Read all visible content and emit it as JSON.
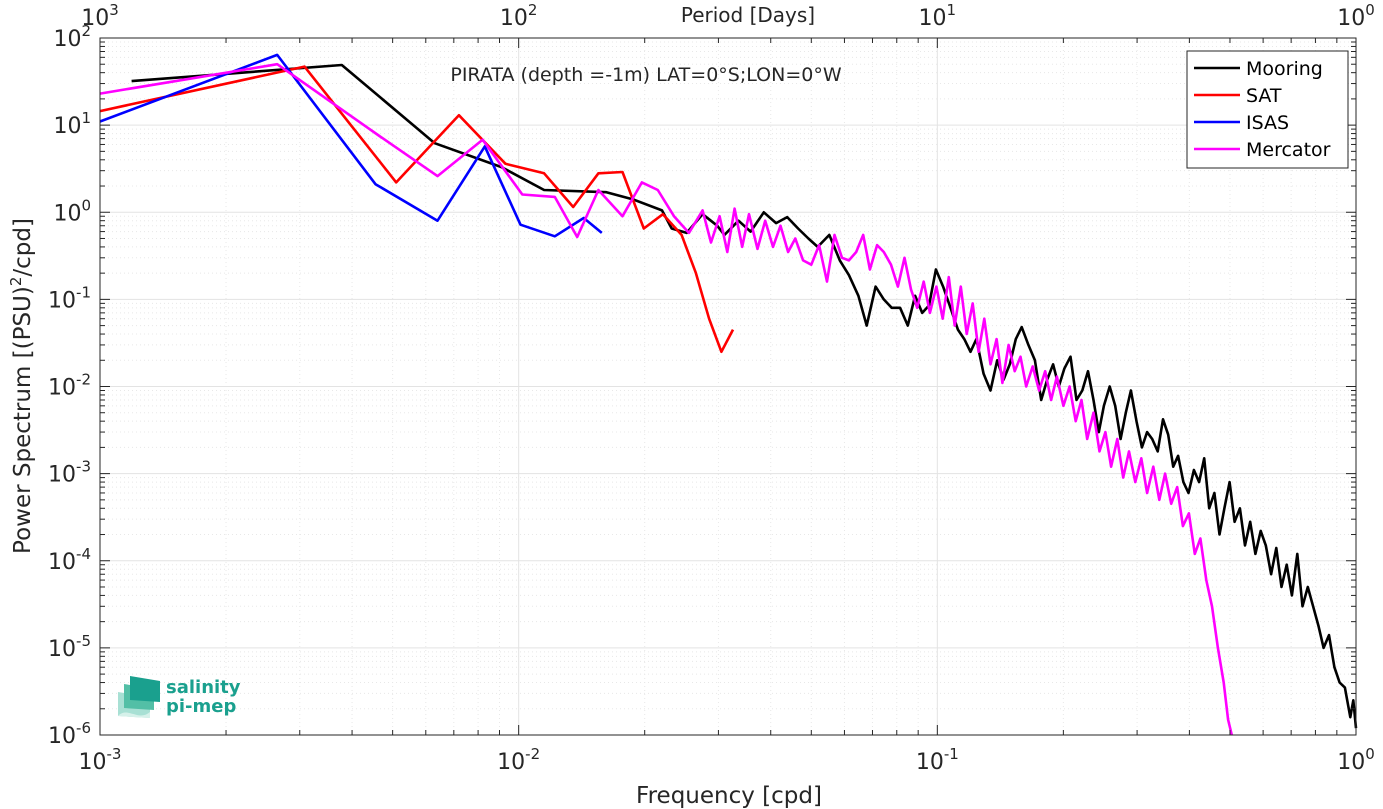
{
  "chart_data": {
    "type": "line",
    "title": "PIRATA (depth =-1m) LAT=0°S;LON=0°W",
    "xlabel": "Frequency [cpd]",
    "ylabel": "Power Spectrum [(PSU)",
    "ylabel_sup": "2",
    "ylabel_tail": "/cpd]",
    "x2label": "Period [Days]",
    "x_scale": "log",
    "y_scale": "log",
    "xlim": [
      0.001,
      1
    ],
    "ylim": [
      1e-06,
      100
    ],
    "grid": true,
    "legend_position": "top-right",
    "x_ticks": [
      {
        "value": 0.001,
        "base": "10",
        "exp": "-3"
      },
      {
        "value": 0.01,
        "base": "10",
        "exp": "-2"
      },
      {
        "value": 0.1,
        "base": "10",
        "exp": "-1"
      },
      {
        "value": 1,
        "base": "10",
        "exp": "0"
      }
    ],
    "x2_ticks": [
      {
        "value": 0.001,
        "base": "10",
        "exp": "3"
      },
      {
        "value": 0.01,
        "base": "10",
        "exp": "2"
      },
      {
        "value": 0.1,
        "base": "10",
        "exp": "1"
      },
      {
        "value": 1,
        "base": "10",
        "exp": "0"
      }
    ],
    "y_ticks": [
      {
        "value": 100,
        "base": "10",
        "exp": "2"
      },
      {
        "value": 10,
        "base": "10",
        "exp": "1"
      },
      {
        "value": 1,
        "base": "10",
        "exp": "0"
      },
      {
        "value": 0.1,
        "base": "10",
        "exp": "-1"
      },
      {
        "value": 0.01,
        "base": "10",
        "exp": "-2"
      },
      {
        "value": 0.001,
        "base": "10",
        "exp": "-3"
      },
      {
        "value": 0.0001,
        "base": "10",
        "exp": "-4"
      },
      {
        "value": 1e-05,
        "base": "10",
        "exp": "-5"
      },
      {
        "value": 1e-06,
        "base": "10",
        "exp": "-6"
      }
    ],
    "series": [
      {
        "name": "Mooring",
        "color": "#000000",
        "points": [
          [
            0.00119,
            32
          ],
          [
            0.00378,
            49
          ],
          [
            0.0063,
            6.2
          ],
          [
            0.0091,
            3.3
          ],
          [
            0.0115,
            1.8
          ],
          [
            0.0162,
            1.7
          ],
          [
            0.0188,
            1.4
          ],
          [
            0.022,
            1.05
          ],
          [
            0.0232,
            0.65
          ],
          [
            0.0252,
            0.58
          ],
          [
            0.0275,
            0.95
          ],
          [
            0.0298,
            0.7
          ],
          [
            0.031,
            0.55
          ],
          [
            0.0335,
            0.8
          ],
          [
            0.0358,
            0.6
          ],
          [
            0.0385,
            1.0
          ],
          [
            0.0412,
            0.75
          ],
          [
            0.0438,
            0.88
          ],
          [
            0.0465,
            0.65
          ],
          [
            0.0492,
            0.5
          ],
          [
            0.0518,
            0.4
          ],
          [
            0.0552,
            0.55
          ],
          [
            0.0585,
            0.28
          ],
          [
            0.0615,
            0.19
          ],
          [
            0.0648,
            0.11
          ],
          [
            0.0678,
            0.05
          ],
          [
            0.0712,
            0.14
          ],
          [
            0.0745,
            0.1
          ],
          [
            0.0778,
            0.08
          ],
          [
            0.0815,
            0.08
          ],
          [
            0.085,
            0.05
          ],
          [
            0.0885,
            0.11
          ],
          [
            0.092,
            0.07
          ],
          [
            0.0955,
            0.085
          ],
          [
            0.0992,
            0.22
          ],
          [
            0.1032,
            0.14
          ],
          [
            0.1075,
            0.08
          ],
          [
            0.112,
            0.045
          ],
          [
            0.116,
            0.035
          ],
          [
            0.12,
            0.025
          ],
          [
            0.124,
            0.035
          ],
          [
            0.129,
            0.014
          ],
          [
            0.134,
            0.009
          ],
          [
            0.139,
            0.02
          ],
          [
            0.144,
            0.012
          ],
          [
            0.149,
            0.018
          ],
          [
            0.154,
            0.035
          ],
          [
            0.159,
            0.048
          ],
          [
            0.165,
            0.03
          ],
          [
            0.171,
            0.02
          ],
          [
            0.177,
            0.007
          ],
          [
            0.183,
            0.012
          ],
          [
            0.189,
            0.018
          ],
          [
            0.195,
            0.01
          ],
          [
            0.201,
            0.016
          ],
          [
            0.208,
            0.022
          ],
          [
            0.215,
            0.007
          ],
          [
            0.222,
            0.009
          ],
          [
            0.229,
            0.015
          ],
          [
            0.236,
            0.007
          ],
          [
            0.243,
            0.003
          ],
          [
            0.25,
            0.006
          ],
          [
            0.258,
            0.01
          ],
          [
            0.266,
            0.006
          ],
          [
            0.274,
            0.0025
          ],
          [
            0.282,
            0.005
          ],
          [
            0.29,
            0.009
          ],
          [
            0.299,
            0.004
          ],
          [
            0.308,
            0.002
          ],
          [
            0.317,
            0.003
          ],
          [
            0.326,
            0.0025
          ],
          [
            0.336,
            0.0018
          ],
          [
            0.346,
            0.0042
          ],
          [
            0.356,
            0.0028
          ],
          [
            0.366,
            0.0012
          ],
          [
            0.376,
            0.0016
          ],
          [
            0.387,
            0.0008
          ],
          [
            0.398,
            0.0006
          ],
          [
            0.41,
            0.0011
          ],
          [
            0.422,
            0.0008
          ],
          [
            0.434,
            0.0015
          ],
          [
            0.446,
            0.0004
          ],
          [
            0.459,
            0.0006
          ],
          [
            0.472,
            0.0002
          ],
          [
            0.485,
            0.0004
          ],
          [
            0.499,
            0.0008
          ],
          [
            0.513,
            0.00028
          ],
          [
            0.528,
            0.0004
          ],
          [
            0.543,
            0.00015
          ],
          [
            0.559,
            0.00028
          ],
          [
            0.575,
            0.00012
          ],
          [
            0.592,
            0.00022
          ],
          [
            0.609,
            0.00015
          ],
          [
            0.627,
            7e-05
          ],
          [
            0.645,
            0.00014
          ],
          [
            0.664,
            5e-05
          ],
          [
            0.683,
            9e-05
          ],
          [
            0.703,
            4e-05
          ],
          [
            0.724,
            0.00012
          ],
          [
            0.745,
            3e-05
          ],
          [
            0.767,
            5e-05
          ],
          [
            0.79,
            3e-05
          ],
          [
            0.813,
            1.8e-05
          ],
          [
            0.837,
            1e-05
          ],
          [
            0.862,
            1.4e-05
          ],
          [
            0.888,
            6e-06
          ],
          [
            0.914,
            4e-06
          ],
          [
            0.941,
            3.5e-06
          ],
          [
            0.969,
            1.6e-06
          ],
          [
            0.985,
            2.5e-06
          ],
          [
            1.0,
            1.2e-06
          ]
        ]
      },
      {
        "name": "SAT",
        "color": "#ff0000",
        "points": [
          [
            0.001,
            14.5
          ],
          [
            0.00308,
            47
          ],
          [
            0.0051,
            2.2
          ],
          [
            0.0072,
            13
          ],
          [
            0.0093,
            3.6
          ],
          [
            0.0115,
            2.8
          ],
          [
            0.0135,
            1.15
          ],
          [
            0.0155,
            2.8
          ],
          [
            0.0177,
            2.9
          ],
          [
            0.0199,
            0.65
          ],
          [
            0.0221,
            0.95
          ],
          [
            0.0245,
            0.55
          ],
          [
            0.0265,
            0.2
          ],
          [
            0.0285,
            0.06
          ],
          [
            0.0305,
            0.025
          ],
          [
            0.0325,
            0.045
          ]
        ]
      },
      {
        "name": "ISAS",
        "color": "#0000ff",
        "points": [
          [
            0.001,
            11
          ],
          [
            0.00265,
            64
          ],
          [
            0.00455,
            2.1
          ],
          [
            0.0064,
            0.8
          ],
          [
            0.0083,
            5.7
          ],
          [
            0.0101,
            0.72
          ],
          [
            0.0122,
            0.53
          ],
          [
            0.0143,
            0.86
          ],
          [
            0.0158,
            0.58
          ]
        ]
      },
      {
        "name": "Mercator",
        "color": "#ff00ff",
        "points": [
          [
            0.001,
            23
          ],
          [
            0.00265,
            50
          ],
          [
            0.00465,
            7.5
          ],
          [
            0.0064,
            2.6
          ],
          [
            0.0082,
            6.8
          ],
          [
            0.0102,
            1.6
          ],
          [
            0.0122,
            1.5
          ],
          [
            0.0138,
            0.52
          ],
          [
            0.0155,
            1.8
          ],
          [
            0.0177,
            0.9
          ],
          [
            0.0197,
            2.2
          ],
          [
            0.0215,
            1.8
          ],
          [
            0.0235,
            0.9
          ],
          [
            0.0255,
            0.58
          ],
          [
            0.0275,
            1.05
          ],
          [
            0.0288,
            0.45
          ],
          [
            0.0302,
            0.9
          ],
          [
            0.0315,
            0.35
          ],
          [
            0.0328,
            1.1
          ],
          [
            0.0342,
            0.4
          ],
          [
            0.0355,
            0.95
          ],
          [
            0.0372,
            0.38
          ],
          [
            0.0388,
            0.8
          ],
          [
            0.0405,
            0.4
          ],
          [
            0.0422,
            0.7
          ],
          [
            0.044,
            0.35
          ],
          [
            0.0458,
            0.5
          ],
          [
            0.0478,
            0.28
          ],
          [
            0.05,
            0.25
          ],
          [
            0.0522,
            0.42
          ],
          [
            0.0545,
            0.16
          ],
          [
            0.0568,
            0.55
          ],
          [
            0.0592,
            0.3
          ],
          [
            0.0615,
            0.28
          ],
          [
            0.064,
            0.35
          ],
          [
            0.0665,
            0.55
          ],
          [
            0.069,
            0.22
          ],
          [
            0.0718,
            0.42
          ],
          [
            0.0745,
            0.35
          ],
          [
            0.0775,
            0.25
          ],
          [
            0.0805,
            0.14
          ],
          [
            0.0835,
            0.3
          ],
          [
            0.0865,
            0.13
          ],
          [
            0.0895,
            0.08
          ],
          [
            0.0928,
            0.16
          ],
          [
            0.096,
            0.07
          ],
          [
            0.0995,
            0.14
          ],
          [
            0.103,
            0.06
          ],
          [
            0.1065,
            0.18
          ],
          [
            0.11,
            0.05
          ],
          [
            0.1138,
            0.14
          ],
          [
            0.1175,
            0.04
          ],
          [
            0.1215,
            0.09
          ],
          [
            0.1255,
            0.025
          ],
          [
            0.1295,
            0.06
          ],
          [
            0.134,
            0.018
          ],
          [
            0.1385,
            0.035
          ],
          [
            0.143,
            0.011
          ],
          [
            0.148,
            0.03
          ],
          [
            0.153,
            0.015
          ],
          [
            0.158,
            0.022
          ],
          [
            0.163,
            0.01
          ],
          [
            0.169,
            0.017
          ],
          [
            0.175,
            0.009
          ],
          [
            0.181,
            0.015
          ],
          [
            0.187,
            0.007
          ],
          [
            0.193,
            0.013
          ],
          [
            0.2,
            0.006
          ],
          [
            0.207,
            0.01
          ],
          [
            0.214,
            0.004
          ],
          [
            0.221,
            0.007
          ],
          [
            0.228,
            0.0025
          ],
          [
            0.236,
            0.005
          ],
          [
            0.244,
            0.0018
          ],
          [
            0.252,
            0.003
          ],
          [
            0.26,
            0.0012
          ],
          [
            0.269,
            0.0025
          ],
          [
            0.278,
            0.0009
          ],
          [
            0.287,
            0.0018
          ],
          [
            0.297,
            0.0008
          ],
          [
            0.307,
            0.0015
          ],
          [
            0.317,
            0.0006
          ],
          [
            0.328,
            0.0012
          ],
          [
            0.339,
            0.0005
          ],
          [
            0.35,
            0.001
          ],
          [
            0.362,
            0.00045
          ],
          [
            0.374,
            0.0007
          ],
          [
            0.386,
            0.00025
          ],
          [
            0.399,
            0.00035
          ],
          [
            0.412,
            0.00012
          ],
          [
            0.425,
            0.00018
          ],
          [
            0.439,
            6e-05
          ],
          [
            0.453,
            3e-05
          ],
          [
            0.468,
            1e-05
          ],
          [
            0.483,
            4e-06
          ],
          [
            0.495,
            1.5e-06
          ],
          [
            0.505,
            1e-06
          ]
        ]
      }
    ]
  },
  "logo": {
    "line1": "salinity",
    "line2": "pi-mep"
  }
}
